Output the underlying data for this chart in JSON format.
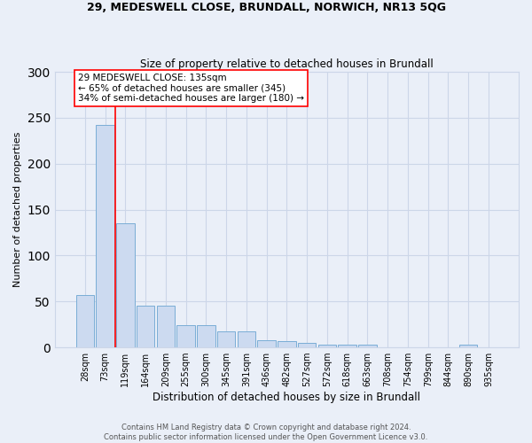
{
  "title1": "29, MEDESWELL CLOSE, BRUNDALL, NORWICH, NR13 5QG",
  "title2": "Size of property relative to detached houses in Brundall",
  "xlabel": "Distribution of detached houses by size in Brundall",
  "ylabel": "Number of detached properties",
  "bar_color": "#ccdaf0",
  "bar_edge_color": "#7aadd6",
  "categories": [
    "28sqm",
    "73sqm",
    "119sqm",
    "164sqm",
    "209sqm",
    "255sqm",
    "300sqm",
    "345sqm",
    "391sqm",
    "436sqm",
    "482sqm",
    "527sqm",
    "572sqm",
    "618sqm",
    "663sqm",
    "708sqm",
    "754sqm",
    "799sqm",
    "844sqm",
    "890sqm",
    "935sqm"
  ],
  "values": [
    57,
    242,
    135,
    45,
    45,
    24,
    24,
    17,
    17,
    8,
    7,
    5,
    3,
    3,
    3,
    0,
    0,
    0,
    0,
    3,
    0
  ],
  "ylim": [
    0,
    300
  ],
  "yticks": [
    0,
    50,
    100,
    150,
    200,
    250,
    300
  ],
  "vline_x": 1.5,
  "annotation_text": "29 MEDESWELL CLOSE: 135sqm\n← 65% of detached houses are smaller (345)\n34% of semi-detached houses are larger (180) →",
  "box_color": "white",
  "box_edge_color": "red",
  "vline_color": "red",
  "grid_color": "#ccd6e8",
  "bg_color": "#eaeff8",
  "footer": "Contains HM Land Registry data © Crown copyright and database right 2024.\nContains public sector information licensed under the Open Government Licence v3.0."
}
